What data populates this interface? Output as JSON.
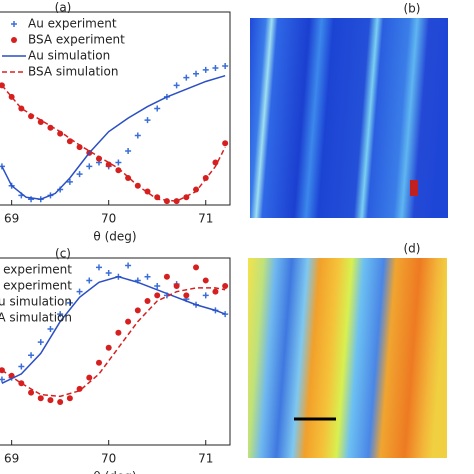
{
  "chart_data": [
    {
      "type": "line",
      "label": "(a)",
      "xlabel": "θ (deg)",
      "xlim": [
        68.88,
        71.25
      ],
      "ylim": [
        0,
        1
      ],
      "xticks": [
        69,
        70,
        71
      ],
      "series": [
        {
          "name": "Au experiment",
          "color": "#3a6fd8",
          "marker": "plus",
          "x": [
            68.9,
            69.0,
            69.1,
            69.2,
            69.3,
            69.4,
            69.5,
            69.6,
            69.7,
            69.8,
            69.9,
            70.0,
            70.1,
            70.2,
            70.3,
            70.4,
            70.5,
            70.6,
            70.7,
            70.8,
            70.9,
            71.0,
            71.1,
            71.2
          ],
          "values": [
            0.2,
            0.1,
            0.05,
            0.03,
            0.03,
            0.05,
            0.08,
            0.12,
            0.16,
            0.2,
            0.22,
            0.2,
            0.22,
            0.28,
            0.36,
            0.44,
            0.5,
            0.56,
            0.62,
            0.66,
            0.68,
            0.7,
            0.71,
            0.72
          ]
        },
        {
          "name": "BSA experiment",
          "color": "#d62020",
          "marker": "circle",
          "x": [
            68.9,
            69.0,
            69.1,
            69.2,
            69.3,
            69.4,
            69.5,
            69.6,
            69.7,
            69.8,
            69.9,
            70.0,
            70.1,
            70.2,
            70.3,
            70.4,
            70.5,
            70.6,
            70.7,
            70.8,
            70.9,
            71.0,
            71.1,
            71.2
          ],
          "values": [
            0.62,
            0.56,
            0.5,
            0.46,
            0.43,
            0.4,
            0.37,
            0.33,
            0.3,
            0.27,
            0.24,
            0.21,
            0.18,
            0.14,
            0.1,
            0.07,
            0.04,
            0.02,
            0.02,
            0.04,
            0.08,
            0.14,
            0.22,
            0.32
          ]
        },
        {
          "name": "Au simulation",
          "color": "#2b4fc4",
          "dash": false,
          "x": [
            68.9,
            69.0,
            69.15,
            69.3,
            69.45,
            69.6,
            69.8,
            70.0,
            70.2,
            70.4,
            70.6,
            70.8,
            71.0,
            71.2
          ],
          "values": [
            0.2,
            0.1,
            0.04,
            0.03,
            0.06,
            0.14,
            0.27,
            0.38,
            0.45,
            0.51,
            0.56,
            0.6,
            0.64,
            0.67
          ]
        },
        {
          "name": "BSA simulation",
          "color": "#d62020",
          "dash": true,
          "x": [
            68.9,
            69.1,
            69.3,
            69.5,
            69.7,
            69.9,
            70.1,
            70.3,
            70.5,
            70.7,
            70.9,
            71.1,
            71.2
          ],
          "values": [
            0.62,
            0.5,
            0.44,
            0.38,
            0.31,
            0.25,
            0.19,
            0.1,
            0.03,
            0.02,
            0.07,
            0.2,
            0.3
          ]
        }
      ]
    },
    {
      "type": "line",
      "label": "(c)",
      "xlabel": "θ (deg)",
      "xlim": [
        68.88,
        71.25
      ],
      "ylim": [
        0,
        1
      ],
      "xticks": [
        69,
        70,
        71
      ],
      "series": [
        {
          "name": "Au experiment",
          "color": "#3a6fd8",
          "marker": "plus",
          "x": [
            68.9,
            69.0,
            69.1,
            69.2,
            69.3,
            69.4,
            69.5,
            69.6,
            69.7,
            69.8,
            69.9,
            70.0,
            70.1,
            70.2,
            70.3,
            70.4,
            70.5,
            70.6,
            70.7,
            70.8,
            70.9,
            71.0,
            71.1,
            71.2
          ],
          "values": [
            0.35,
            0.36,
            0.42,
            0.48,
            0.55,
            0.62,
            0.7,
            0.76,
            0.82,
            0.88,
            0.95,
            0.92,
            0.9,
            0.96,
            0.88,
            0.9,
            0.85,
            0.8,
            0.86,
            0.78,
            0.75,
            0.8,
            0.72,
            0.7
          ]
        },
        {
          "name": "BSA experiment",
          "color": "#d62020",
          "marker": "circle",
          "x": [
            68.9,
            69.0,
            69.1,
            69.2,
            69.3,
            69.4,
            69.5,
            69.6,
            69.7,
            69.8,
            69.9,
            70.0,
            70.1,
            70.2,
            70.3,
            70.4,
            70.5,
            70.6,
            70.7,
            70.8,
            70.9,
            71.0,
            71.1,
            71.2
          ],
          "values": [
            0.4,
            0.37,
            0.33,
            0.28,
            0.25,
            0.24,
            0.23,
            0.25,
            0.3,
            0.36,
            0.44,
            0.52,
            0.6,
            0.66,
            0.72,
            0.77,
            0.8,
            0.9,
            0.85,
            0.8,
            0.95,
            0.88,
            0.82,
            0.85
          ]
        },
        {
          "name": "Au simulation",
          "color": "#2b4fc4",
          "dash": false,
          "x": [
            68.9,
            69.1,
            69.3,
            69.5,
            69.7,
            69.9,
            70.1,
            70.3,
            70.5,
            70.7,
            70.9,
            71.1,
            71.2
          ],
          "values": [
            0.33,
            0.38,
            0.49,
            0.66,
            0.79,
            0.87,
            0.9,
            0.87,
            0.83,
            0.79,
            0.75,
            0.72,
            0.7
          ]
        },
        {
          "name": "BSA simulation",
          "color": "#d62020",
          "dash": true,
          "x": [
            68.9,
            69.1,
            69.3,
            69.5,
            69.7,
            69.9,
            70.1,
            70.3,
            70.5,
            70.7,
            70.9,
            71.1,
            71.2
          ],
          "values": [
            0.4,
            0.33,
            0.27,
            0.26,
            0.29,
            0.38,
            0.52,
            0.66,
            0.77,
            0.82,
            0.84,
            0.84,
            0.83
          ]
        }
      ]
    }
  ],
  "images": [
    {
      "label": "(b)"
    },
    {
      "label": "(d)"
    }
  ]
}
